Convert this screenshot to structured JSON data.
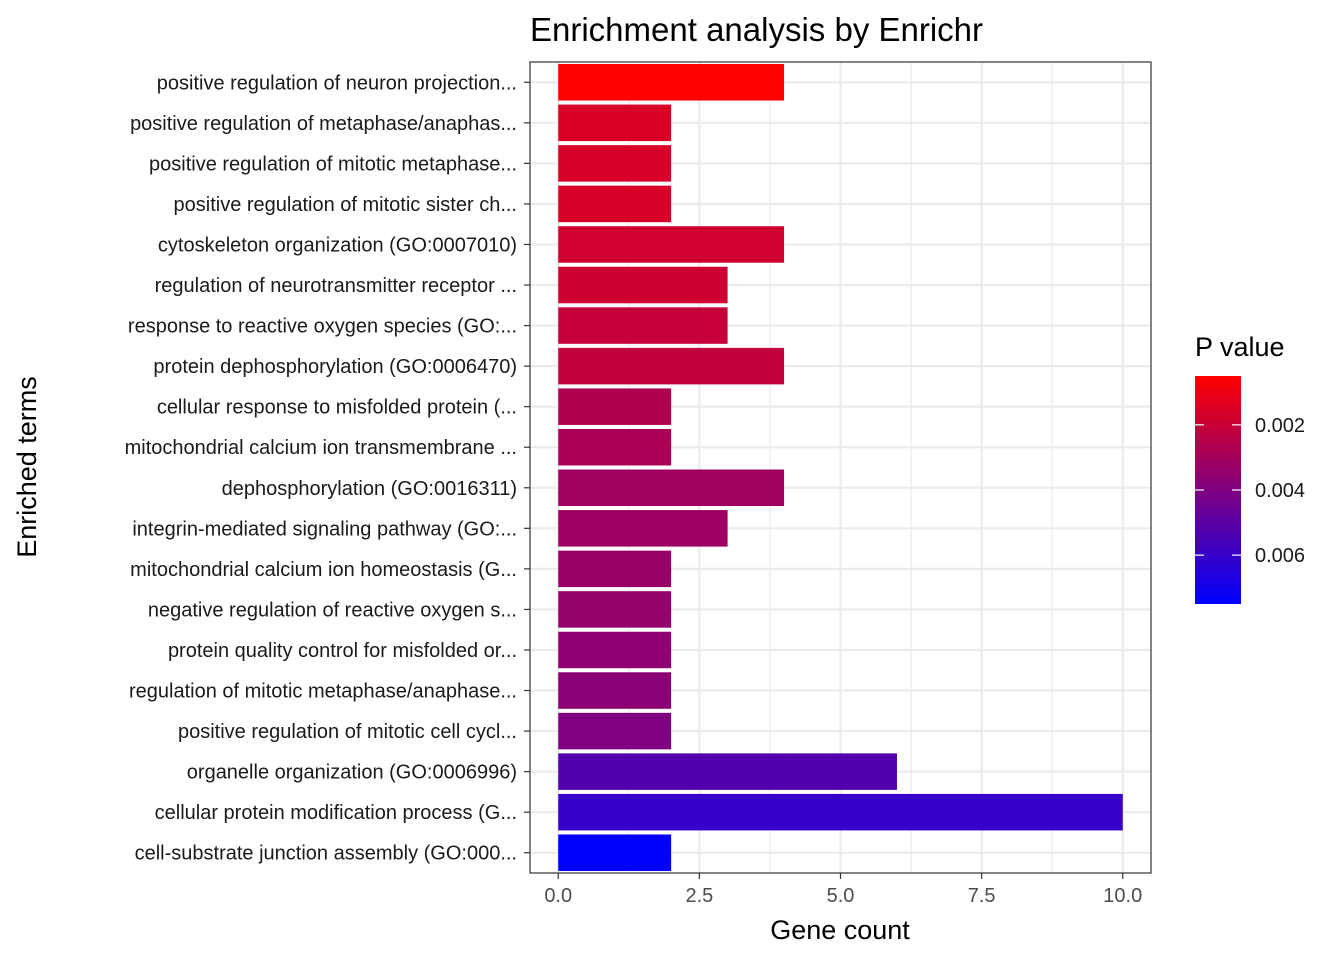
{
  "chart_data": {
    "type": "bar",
    "orientation": "horizontal",
    "title": "Enrichment analysis by Enrichr",
    "xlabel": "Gene count",
    "ylabel": "Enriched terms",
    "xlim": [
      -0.5,
      10.5
    ],
    "xticks": [
      0,
      2.5,
      5,
      7.5,
      10
    ],
    "xtick_labels": [
      "0.0",
      "2.5",
      "5.0",
      "7.5",
      "10.0"
    ],
    "grid": true,
    "legend_position": "right",
    "categories": [
      "positive regulation of neuron projection...",
      "positive regulation of metaphase/anaphas...",
      "positive regulation of mitotic metaphase...",
      "positive regulation of mitotic sister ch...",
      "cytoskeleton organization (GO:0007010)",
      "regulation of neurotransmitter receptor ...",
      "response to reactive oxygen species (GO:...",
      "protein dephosphorylation (GO:0006470)",
      "cellular response to misfolded protein (...",
      "mitochondrial calcium ion transmembrane ...",
      "dephosphorylation (GO:0016311)",
      "integrin-mediated signaling pathway (GO:...",
      "mitochondrial calcium ion homeostasis (G...",
      "negative regulation of reactive oxygen s...",
      "protein quality control for misfolded or...",
      "regulation of mitotic metaphase/anaphase...",
      "positive regulation of mitotic cell cycl...",
      "organelle organization (GO:0006996)",
      "cellular protein modification process (G...",
      "cell-substrate junction assembly (GO:000..."
    ],
    "values": [
      4,
      2,
      2,
      2,
      4,
      3,
      3,
      4,
      2,
      2,
      4,
      3,
      2,
      2,
      2,
      2,
      2,
      6,
      10,
      2
    ],
    "p_values": [
      0.00049,
      0.00155,
      0.0016,
      0.0016,
      0.0018,
      0.0019,
      0.0021,
      0.0022,
      0.0027,
      0.0028,
      0.0031,
      0.0032,
      0.0033,
      0.0034,
      0.0036,
      0.0037,
      0.004,
      0.0053,
      0.006,
      0.0075
    ],
    "color_legend": {
      "title": "P value",
      "min": 0.0005,
      "max": 0.0075,
      "ticks": [
        0.002,
        0.004,
        0.006
      ],
      "tick_labels": [
        "0.002",
        "0.004",
        "0.006"
      ],
      "low_color": "#FF0000",
      "high_color": "#0000FF"
    }
  }
}
